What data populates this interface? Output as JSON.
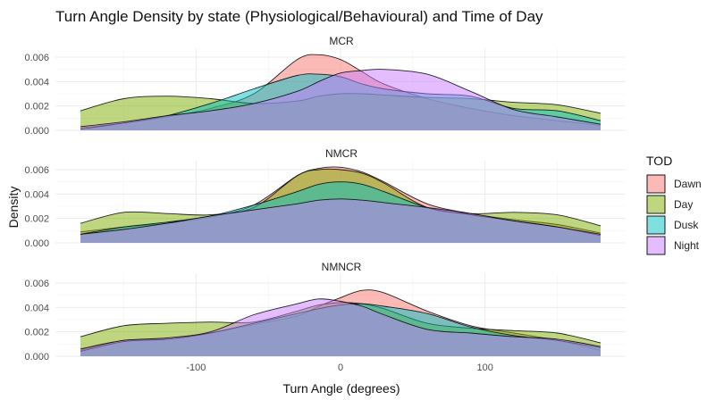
{
  "chart_data": {
    "type": "area",
    "title": "Turn Angle Density by state (Physiological/Behavioural) and Time of Day",
    "xlabel": "Turn Angle (degrees)",
    "ylabel": "Density",
    "xlim": [
      -180,
      180
    ],
    "ylim": [
      0,
      0.0065
    ],
    "x_ticks": [
      -100,
      0,
      100
    ],
    "x_tick_labels": [
      "-100",
      "0",
      "100"
    ],
    "y_ticks": [
      0,
      0.002,
      0.004,
      0.006
    ],
    "y_tick_labels": [
      "0.000",
      "0.002",
      "0.004",
      "0.006"
    ],
    "grid": true,
    "legend": {
      "title": "TOD",
      "position": "right",
      "entries": [
        "Dawn",
        "Day",
        "Dusk",
        "Night"
      ]
    },
    "colors": {
      "Dawn": "#F8766D",
      "Day": "#7CAE00",
      "Dusk": "#00BFC4",
      "Night": "#C77CFF"
    },
    "x": [
      -180,
      -150,
      -120,
      -90,
      -60,
      -30,
      -15,
      0,
      15,
      30,
      60,
      90,
      120,
      150,
      180
    ],
    "facets": [
      {
        "label": "MCR",
        "series": [
          {
            "name": "Dawn",
            "values": [
              0.0002,
              0.0006,
              0.0011,
              0.0018,
              0.003,
              0.0058,
              0.0062,
              0.0058,
              0.0048,
              0.0038,
              0.0026,
              0.0018,
              0.0012,
              0.0008,
              0.0004
            ]
          },
          {
            "name": "Day",
            "values": [
              0.0016,
              0.0026,
              0.0028,
              0.0026,
              0.0022,
              0.0024,
              0.0028,
              0.003,
              0.003,
              0.0029,
              0.0027,
              0.0026,
              0.0023,
              0.0021,
              0.0014
            ]
          },
          {
            "name": "Dusk",
            "values": [
              0.0001,
              0.0006,
              0.0012,
              0.0022,
              0.0034,
              0.0045,
              0.0046,
              0.0044,
              0.0038,
              0.0034,
              0.003,
              0.0028,
              0.0018,
              0.0016,
              0.0008
            ]
          },
          {
            "name": "Night",
            "values": [
              0.0003,
              0.0007,
              0.0012,
              0.0016,
              0.0022,
              0.0032,
              0.004,
              0.0047,
              0.0049,
              0.005,
              0.0046,
              0.0032,
              0.0017,
              0.0011,
              0.0005
            ]
          }
        ]
      },
      {
        "label": "NMCR",
        "series": [
          {
            "name": "Dawn",
            "values": [
              0.0009,
              0.0013,
              0.0016,
              0.0021,
              0.0031,
              0.0055,
              0.0061,
              0.0062,
              0.0058,
              0.005,
              0.0032,
              0.0024,
              0.0019,
              0.0015,
              0.0008
            ]
          },
          {
            "name": "Day",
            "values": [
              0.0016,
              0.0025,
              0.0024,
              0.0023,
              0.0029,
              0.0055,
              0.006,
              0.006,
              0.0057,
              0.0049,
              0.0029,
              0.0024,
              0.0025,
              0.0023,
              0.0014
            ]
          },
          {
            "name": "Dusk",
            "values": [
              0.0007,
              0.0013,
              0.0017,
              0.0022,
              0.0031,
              0.0042,
              0.0048,
              0.005,
              0.0048,
              0.0042,
              0.0029,
              0.0023,
              0.0018,
              0.0013,
              0.0006
            ]
          },
          {
            "name": "Night",
            "values": [
              0.0007,
              0.0011,
              0.0016,
              0.0022,
              0.0027,
              0.0032,
              0.0035,
              0.0036,
              0.0035,
              0.0033,
              0.0029,
              0.0024,
              0.0018,
              0.0013,
              0.0007
            ]
          }
        ]
      },
      {
        "label": "NMNCR",
        "series": [
          {
            "name": "Dawn",
            "values": [
              0.0005,
              0.0013,
              0.0014,
              0.0019,
              0.0026,
              0.0033,
              0.0041,
              0.0048,
              0.0054,
              0.0052,
              0.0037,
              0.0025,
              0.0019,
              0.0013,
              0.0005
            ]
          },
          {
            "name": "Day",
            "values": [
              0.0016,
              0.0025,
              0.0027,
              0.0028,
              0.0028,
              0.0037,
              0.0042,
              0.0044,
              0.0043,
              0.0039,
              0.0027,
              0.0023,
              0.0021,
              0.0019,
              0.0011
            ]
          },
          {
            "name": "Dusk",
            "values": [
              0.0004,
              0.0012,
              0.0014,
              0.0019,
              0.0027,
              0.0035,
              0.0039,
              0.0042,
              0.0043,
              0.0041,
              0.0035,
              0.0024,
              0.0017,
              0.0013,
              0.0007
            ]
          },
          {
            "name": "Night",
            "values": [
              0.0006,
              0.0013,
              0.0015,
              0.002,
              0.0034,
              0.0043,
              0.0047,
              0.0045,
              0.0041,
              0.0034,
              0.0022,
              0.0019,
              0.0016,
              0.0014,
              0.0008
            ]
          }
        ]
      }
    ]
  }
}
